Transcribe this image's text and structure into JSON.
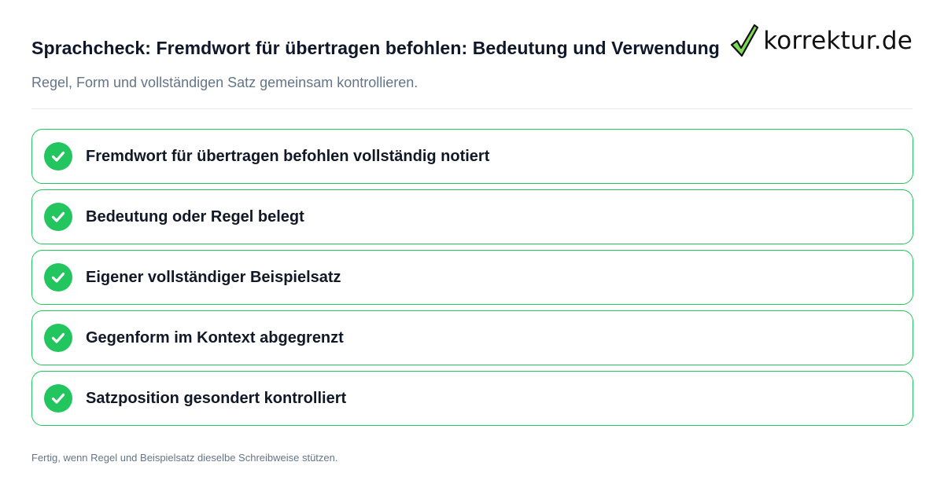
{
  "header": {
    "title": "Sprachcheck: Fremdwort für übertragen befohlen: Bedeutung und Verwendung",
    "subtitle": "Regel, Form und vollständigen Satz gemeinsam kontrollieren."
  },
  "logo": {
    "text": "korrektur.de",
    "icon": "checkmark-logo-icon",
    "colors": {
      "check_fill": "#7ed957",
      "check_outline": "#111111"
    }
  },
  "checklist": {
    "items": [
      {
        "label": "Fremdwort für übertragen befohlen vollständig notiert",
        "checked": true,
        "icon": "check-circle-icon"
      },
      {
        "label": "Bedeutung oder Regel belegt",
        "checked": true,
        "icon": "check-circle-icon"
      },
      {
        "label": "Eigener vollständiger Beispielsatz",
        "checked": true,
        "icon": "check-circle-icon"
      },
      {
        "label": "Gegenform im Kontext abgegrenzt",
        "checked": true,
        "icon": "check-circle-icon"
      },
      {
        "label": "Satzposition gesondert kontrolliert",
        "checked": true,
        "icon": "check-circle-icon"
      }
    ]
  },
  "footer": {
    "note": "Fertig, wenn Regel und Beispielsatz dieselbe Schreibweise stützen."
  },
  "colors": {
    "accent": "#22c55e",
    "title": "#0f172a",
    "muted": "#64748b",
    "divider": "#e5e7eb"
  }
}
